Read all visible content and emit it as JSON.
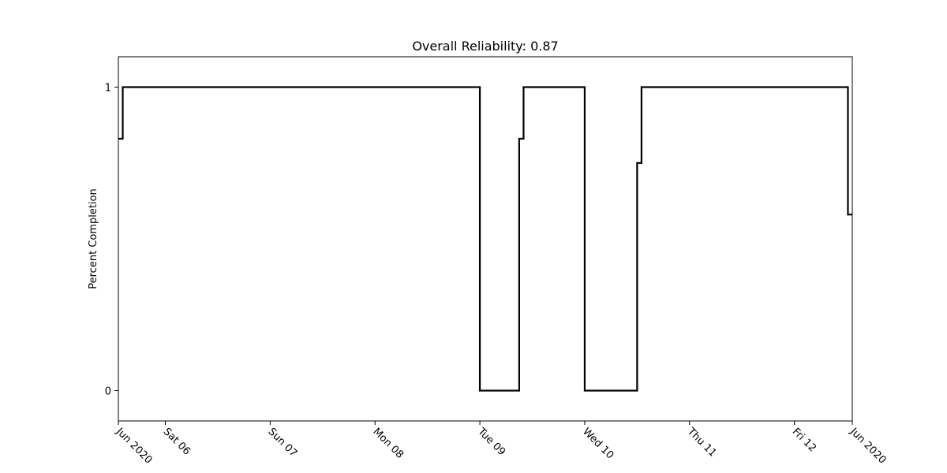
{
  "chart_data": {
    "type": "line",
    "title": "Overall Reliability: 0.87",
    "xlabel": "",
    "ylabel": "Percent Completion",
    "line_style": "step",
    "line_color": "#000000",
    "grid": false,
    "legend": "none",
    "xlim": [
      "2020-06-05T13:15",
      "2020-06-12T13:15"
    ],
    "ylim": [
      -0.1,
      1.1
    ],
    "x_ticks": [
      {
        "value": "2020-06-05T13:15",
        "label": "Jun 2020"
      },
      {
        "value": "2020-06-06T00:00",
        "label": "Sat 06"
      },
      {
        "value": "2020-06-07T00:00",
        "label": "Sun 07"
      },
      {
        "value": "2020-06-08T00:00",
        "label": "Mon 08"
      },
      {
        "value": "2020-06-09T00:00",
        "label": "Tue 09"
      },
      {
        "value": "2020-06-10T00:00",
        "label": "Wed 10"
      },
      {
        "value": "2020-06-11T00:00",
        "label": "Thu 11"
      },
      {
        "value": "2020-06-12T00:00",
        "label": "Fri 12"
      },
      {
        "value": "2020-06-12T13:15",
        "label": "Jun 2020"
      }
    ],
    "y_ticks": [
      {
        "value": 0,
        "label": "0"
      },
      {
        "value": 1,
        "label": "1"
      }
    ],
    "series": [
      {
        "x": [
          "2020-06-05T13:15",
          "2020-06-05T14:15",
          "2020-06-09T00:00",
          "2020-06-09T09:00",
          "2020-06-09T10:00",
          "2020-06-10T00:00",
          "2020-06-10T12:00",
          "2020-06-10T13:00",
          "2020-06-12T12:15"
        ],
        "y": [
          0.83,
          1,
          0,
          0.83,
          1,
          0,
          0.75,
          1,
          0.58
        ]
      }
    ]
  }
}
